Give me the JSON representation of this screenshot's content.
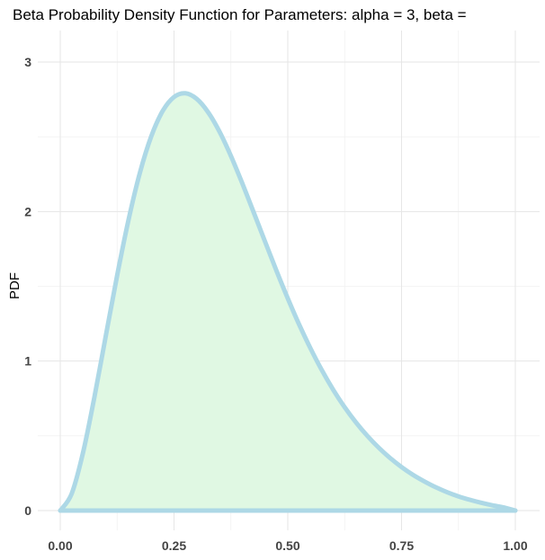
{
  "chart_data": {
    "type": "area",
    "title": "Beta Probability Density Function for Parameters: alpha = 3, beta =",
    "xlabel": "",
    "ylabel": "PDF",
    "xlim": [
      0,
      1
    ],
    "ylim": [
      0,
      3.06
    ],
    "x_ticks": [
      "0.00",
      "0.25",
      "0.50",
      "0.75",
      "1.00"
    ],
    "y_ticks": [
      "0",
      "1",
      "2",
      "3"
    ],
    "grid": true,
    "legend": "none",
    "series": [
      {
        "x": [
          0.0,
          0.025,
          0.05,
          0.075,
          0.1,
          0.125,
          0.15,
          0.175,
          0.2,
          0.225,
          0.25,
          0.275,
          0.3,
          0.325,
          0.35,
          0.375,
          0.4,
          0.425,
          0.45,
          0.475,
          0.5,
          0.525,
          0.55,
          0.575,
          0.6,
          0.625,
          0.65,
          0.675,
          0.7,
          0.725,
          0.75,
          0.775,
          0.8,
          0.825,
          0.85,
          0.875,
          0.9,
          0.925,
          0.95,
          0.975,
          1.0
        ],
        "y": [
          0.0,
          0.112,
          0.387,
          0.758,
          1.167,
          1.572,
          1.944,
          2.259,
          2.503,
          2.672,
          2.766,
          2.791,
          2.753,
          2.664,
          2.534,
          2.372,
          2.189,
          1.995,
          1.799,
          1.605,
          1.419,
          1.244,
          1.084,
          0.938,
          0.807,
          0.691,
          0.589,
          0.499,
          0.42,
          0.351,
          0.291,
          0.239,
          0.195,
          0.156,
          0.123,
          0.095,
          0.072,
          0.052,
          0.035,
          0.021,
          0.0
        ]
      }
    ],
    "colors": {
      "line": "#add8e6",
      "fill": "#e0f8e3"
    }
  }
}
